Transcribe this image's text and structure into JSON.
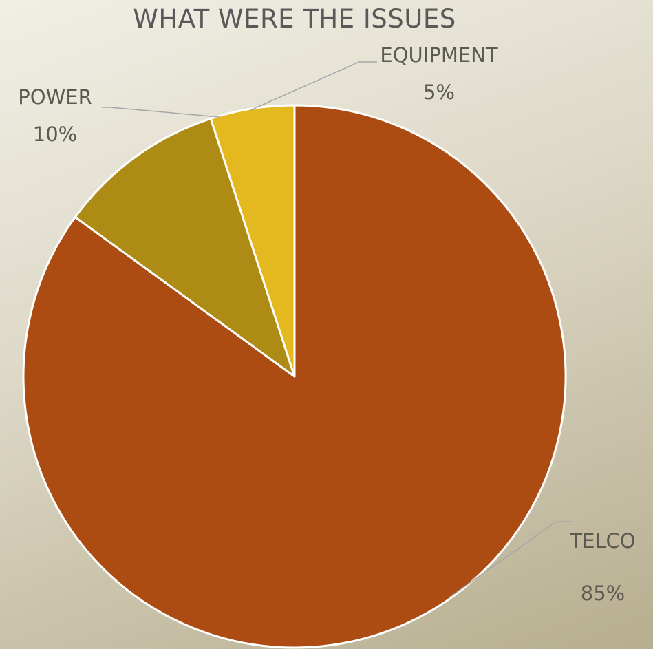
{
  "chart_data": {
    "type": "pie",
    "title": "WHAT WERE THE ISSUES",
    "categories": [
      "TELCO",
      "POWER",
      "EQUIPMENT"
    ],
    "values": [
      85,
      10,
      5
    ],
    "value_labels": [
      "85%",
      "10%",
      "5%"
    ],
    "colors": [
      "#ad4c12",
      "#ae8b15",
      "#e4b81f"
    ],
    "start_angle_deg": 0,
    "direction": "clockwise",
    "slice_border_color": "#ffffff",
    "leader_line_color": "#a6a6a6"
  }
}
